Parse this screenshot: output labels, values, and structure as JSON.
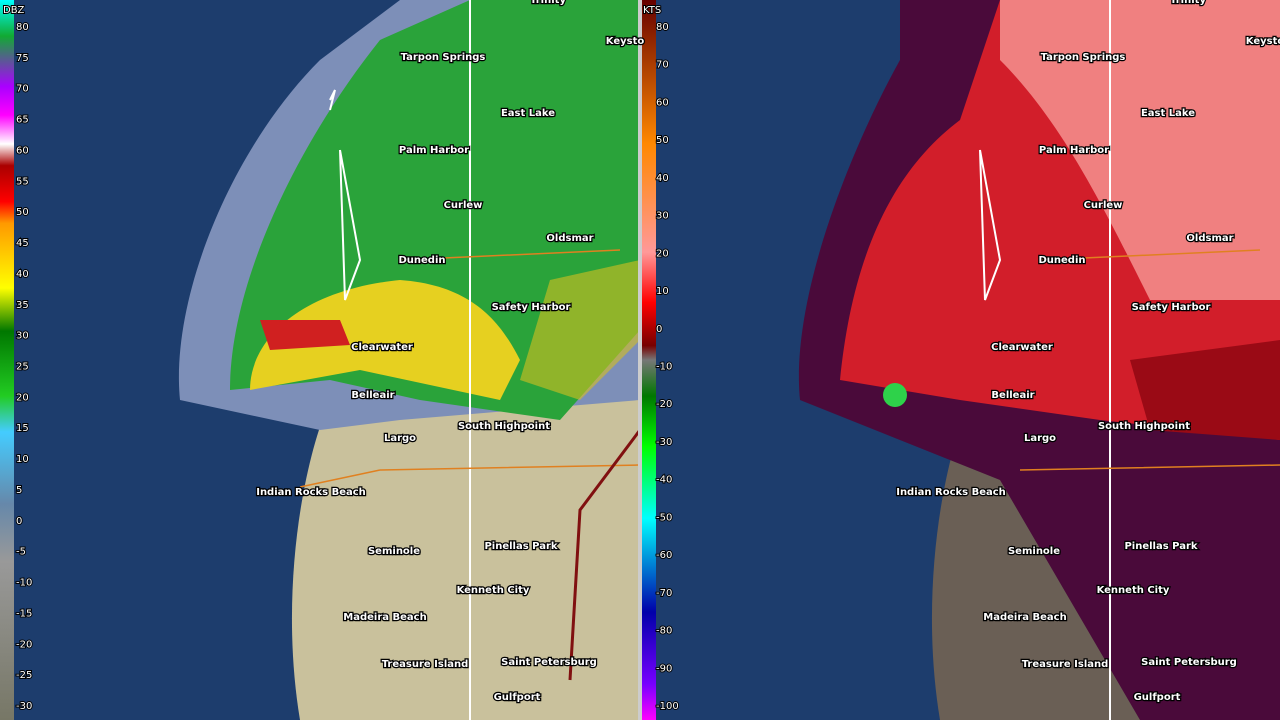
{
  "panels": [
    {
      "unit": "DBZ",
      "scale": [
        80,
        75,
        70,
        65,
        60,
        55,
        50,
        45,
        40,
        35,
        30,
        25,
        20,
        15,
        10,
        5,
        0,
        -5,
        -10,
        -15,
        -20,
        -25,
        -30
      ]
    },
    {
      "unit": "KTS",
      "scale": [
        80,
        70,
        60,
        50,
        40,
        30,
        20,
        10,
        0,
        -10,
        -20,
        -30,
        -40,
        -50,
        -60,
        -70,
        -80,
        -90,
        -100
      ]
    }
  ],
  "places": [
    "Trinity",
    "Tarpon Springs",
    "Keysto",
    "East Lake",
    "Palm Harbor",
    "Curlew",
    "Oldsmar",
    "Dunedin",
    "Safety Harbor",
    "Clearwater",
    "Belleair",
    "Largo",
    "South Highpoint",
    "Indian Rocks Beach",
    "Seminole",
    "Pinellas Park",
    "Kenneth City",
    "Madeira Beach",
    "Treasure Island",
    "Saint Petersburg",
    "Gulfport"
  ]
}
